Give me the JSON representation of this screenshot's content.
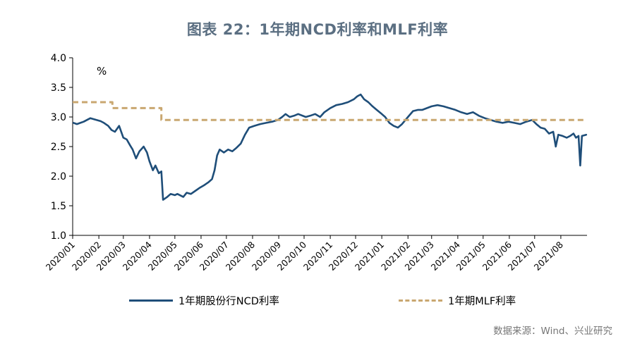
{
  "title": "图表 22：1年期NCD利率和MLF利率",
  "source": "数据来源：Wind、兴业研究",
  "chart_data": {
    "type": "line",
    "unit_label": "%",
    "ylim": [
      1.0,
      4.0
    ],
    "yticks": [
      "1.0",
      "1.5",
      "2.0",
      "2.5",
      "3.0",
      "3.5",
      "4.0"
    ],
    "x_categories": [
      "2020/01",
      "2020/02",
      "2020/03",
      "2020/04",
      "2020/05",
      "2020/06",
      "2020/07",
      "2020/08",
      "2020/09",
      "2020/10",
      "2020/11",
      "2020/12",
      "2021/01",
      "2021/02",
      "2021/03",
      "2021/04",
      "2021/05",
      "2021/06",
      "2021/07",
      "2021/08"
    ],
    "grid": false,
    "legend_position": "bottom",
    "series": [
      {
        "name": "1年期股份行NCD利率",
        "style": "solid",
        "color": "#1f4e79",
        "points": [
          [
            "2020/01/02",
            2.9
          ],
          [
            "2020/01/06",
            2.88
          ],
          [
            "2020/01/10",
            2.9
          ],
          [
            "2020/01/14",
            2.92
          ],
          [
            "2020/01/18",
            2.95
          ],
          [
            "2020/01/22",
            2.98
          ],
          [
            "2020/02/03",
            2.93
          ],
          [
            "2020/02/07",
            2.9
          ],
          [
            "2020/02/12",
            2.85
          ],
          [
            "2020/02/16",
            2.78
          ],
          [
            "2020/02/20",
            2.75
          ],
          [
            "2020/02/25",
            2.85
          ],
          [
            "2020/03/01",
            2.65
          ],
          [
            "2020/03/05",
            2.62
          ],
          [
            "2020/03/09",
            2.52
          ],
          [
            "2020/03/12",
            2.45
          ],
          [
            "2020/03/16",
            2.3
          ],
          [
            "2020/03/20",
            2.42
          ],
          [
            "2020/03/25",
            2.5
          ],
          [
            "2020/03/29",
            2.4
          ],
          [
            "2020/04/01",
            2.25
          ],
          [
            "2020/04/05",
            2.1
          ],
          [
            "2020/04/08",
            2.18
          ],
          [
            "2020/04/12",
            2.05
          ],
          [
            "2020/04/15",
            2.08
          ],
          [
            "2020/04/17",
            1.6
          ],
          [
            "2020/04/22",
            1.65
          ],
          [
            "2020/04/26",
            1.7
          ],
          [
            "2020/05/01",
            1.68
          ],
          [
            "2020/05/04",
            1.7
          ],
          [
            "2020/05/11",
            1.65
          ],
          [
            "2020/05/15",
            1.72
          ],
          [
            "2020/05/20",
            1.7
          ],
          [
            "2020/05/25",
            1.75
          ],
          [
            "2020/05/30",
            1.8
          ],
          [
            "2020/06/05",
            1.85
          ],
          [
            "2020/06/10",
            1.9
          ],
          [
            "2020/06/14",
            1.95
          ],
          [
            "2020/06/17",
            2.1
          ],
          [
            "2020/06/20",
            2.35
          ],
          [
            "2020/06/23",
            2.45
          ],
          [
            "2020/06/28",
            2.4
          ],
          [
            "2020/07/03",
            2.45
          ],
          [
            "2020/07/08",
            2.42
          ],
          [
            "2020/07/13",
            2.48
          ],
          [
            "2020/07/18",
            2.55
          ],
          [
            "2020/07/23",
            2.7
          ],
          [
            "2020/07/28",
            2.82
          ],
          [
            "2020/08/03",
            2.85
          ],
          [
            "2020/08/10",
            2.88
          ],
          [
            "2020/08/17",
            2.9
          ],
          [
            "2020/08/24",
            2.92
          ],
          [
            "2020/08/31",
            2.95
          ],
          [
            "2020/09/05",
            3.0
          ],
          [
            "2020/09/09",
            3.05
          ],
          [
            "2020/09/14",
            3.0
          ],
          [
            "2020/09/19",
            3.02
          ],
          [
            "2020/09/24",
            3.05
          ],
          [
            "2020/10/03",
            3.0
          ],
          [
            "2020/10/08",
            3.02
          ],
          [
            "2020/10/14",
            3.05
          ],
          [
            "2020/10/20",
            3.0
          ],
          [
            "2020/10/25",
            3.08
          ],
          [
            "2020/11/01",
            3.15
          ],
          [
            "2020/11/08",
            3.2
          ],
          [
            "2020/11/15",
            3.22
          ],
          [
            "2020/11/22",
            3.25
          ],
          [
            "2020/11/29",
            3.3
          ],
          [
            "2020/12/03",
            3.35
          ],
          [
            "2020/12/07",
            3.38
          ],
          [
            "2020/12/11",
            3.3
          ],
          [
            "2020/12/16",
            3.25
          ],
          [
            "2020/12/21",
            3.18
          ],
          [
            "2020/12/26",
            3.12
          ],
          [
            "2021/01/01",
            3.05
          ],
          [
            "2021/01/05",
            3.0
          ],
          [
            "2021/01/10",
            2.9
          ],
          [
            "2021/01/15",
            2.85
          ],
          [
            "2021/01/20",
            2.82
          ],
          [
            "2021/01/25",
            2.88
          ],
          [
            "2021/02/01",
            3.0
          ],
          [
            "2021/02/07",
            3.1
          ],
          [
            "2021/02/13",
            3.12
          ],
          [
            "2021/02/18",
            3.12
          ],
          [
            "2021/03/01",
            3.18
          ],
          [
            "2021/03/08",
            3.2
          ],
          [
            "2021/03/15",
            3.18
          ],
          [
            "2021/03/22",
            3.15
          ],
          [
            "2021/03/29",
            3.12
          ],
          [
            "2021/04/05",
            3.08
          ],
          [
            "2021/04/12",
            3.05
          ],
          [
            "2021/04/19",
            3.08
          ],
          [
            "2021/04/26",
            3.02
          ],
          [
            "2021/05/03",
            2.98
          ],
          [
            "2021/05/10",
            2.95
          ],
          [
            "2021/05/17",
            2.92
          ],
          [
            "2021/05/24",
            2.9
          ],
          [
            "2021/05/31",
            2.92
          ],
          [
            "2021/06/07",
            2.9
          ],
          [
            "2021/06/14",
            2.88
          ],
          [
            "2021/06/21",
            2.92
          ],
          [
            "2021/06/28",
            2.95
          ],
          [
            "2021/07/03",
            2.88
          ],
          [
            "2021/07/08",
            2.82
          ],
          [
            "2021/07/13",
            2.8
          ],
          [
            "2021/07/18",
            2.72
          ],
          [
            "2021/07/23",
            2.75
          ],
          [
            "2021/07/26",
            2.5
          ],
          [
            "2021/07/29",
            2.7
          ],
          [
            "2021/08/03",
            2.68
          ],
          [
            "2021/08/08",
            2.65
          ],
          [
            "2021/08/12",
            2.68
          ],
          [
            "2021/08/16",
            2.72
          ],
          [
            "2021/08/19",
            2.65
          ],
          [
            "2021/08/22",
            2.68
          ],
          [
            "2021/08/24",
            2.18
          ],
          [
            "2021/08/26",
            2.68
          ],
          [
            "2021/08/31",
            2.7
          ]
        ]
      },
      {
        "name": "1年期MLF利率",
        "style": "dashed",
        "color": "#c9a770",
        "points": [
          [
            "2020/01/01",
            3.25
          ],
          [
            "2020/02/17",
            3.25
          ],
          [
            "2020/02/17",
            3.15
          ],
          [
            "2020/04/15",
            3.15
          ],
          [
            "2020/04/15",
            2.95
          ],
          [
            "2021/08/31",
            2.95
          ]
        ]
      }
    ]
  }
}
